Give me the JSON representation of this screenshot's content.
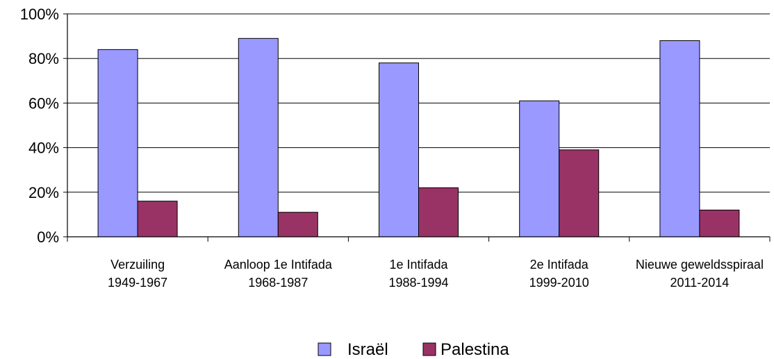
{
  "chart_data": {
    "type": "bar",
    "categories": [
      [
        "Verzuiling",
        "1949-1967"
      ],
      [
        "Aanloop 1e Intifada",
        "1968-1987"
      ],
      [
        "1e Intifada",
        "1988-1994"
      ],
      [
        "2e Intifada",
        "1999-2010"
      ],
      [
        "Nieuwe geweldsspiraal",
        "2011-2014"
      ]
    ],
    "series": [
      {
        "name": "Israël",
        "values": [
          84,
          89,
          78,
          61,
          88
        ],
        "color": "#9999ff"
      },
      {
        "name": "Palestina",
        "values": [
          16,
          11,
          22,
          39,
          12
        ],
        "color": "#993366"
      }
    ],
    "ylim": [
      0,
      100
    ],
    "yticks": [
      "0%",
      "20%",
      "40%",
      "60%",
      "80%",
      "100%"
    ],
    "grid": true,
    "legend_placement": "bottom"
  }
}
